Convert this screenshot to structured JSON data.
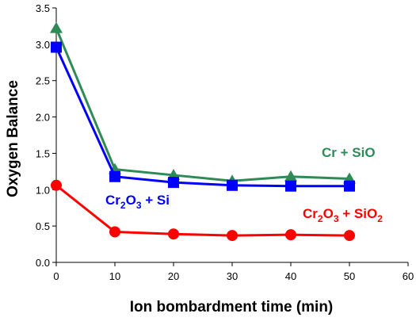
{
  "chart_data": {
    "type": "line",
    "title": "",
    "xlabel": "Ion bombardment time (min)",
    "ylabel": "Oxygen Balance",
    "xlim": [
      0,
      60
    ],
    "ylim": [
      0,
      3.5
    ],
    "x_ticks": [
      "0",
      "10",
      "20",
      "30",
      "40",
      "50",
      "60"
    ],
    "y_ticks": [
      "0.0",
      "0.5",
      "1.0",
      "1.5",
      "2.0",
      "2.5",
      "3.0",
      "3.5"
    ],
    "grid": false,
    "legend": "none",
    "x": [
      0,
      10,
      20,
      30,
      40,
      50
    ],
    "series": [
      {
        "name": "Cr + SiO",
        "marker": "triangle",
        "color": "#2e8b57",
        "values": [
          3.22,
          1.28,
          1.2,
          1.12,
          1.18,
          1.15
        ]
      },
      {
        "name": "Cr2O3 + Si",
        "marker": "square",
        "color": "#0000ff",
        "values": [
          2.96,
          1.18,
          1.1,
          1.06,
          1.05,
          1.05
        ]
      },
      {
        "name": "Cr2O3 + SiO2",
        "marker": "circle",
        "color": "#ff0000",
        "values": [
          1.06,
          0.42,
          0.39,
          0.37,
          0.38,
          0.37
        ]
      }
    ],
    "annotations": [
      {
        "base": "Cr + SiO",
        "sub1": "",
        "mid": "",
        "sub2": "",
        "color": "#2e8b57"
      },
      {
        "base": "Cr",
        "sub1": "2",
        "mid": "O",
        "sub2": "3",
        "tail": " + Si",
        "color": "#0000ff"
      },
      {
        "base": "Cr",
        "sub1": "2",
        "mid": "O",
        "sub2": "3",
        "tail": " + SiO",
        "sub3": "2",
        "color": "#ff0000"
      }
    ]
  }
}
